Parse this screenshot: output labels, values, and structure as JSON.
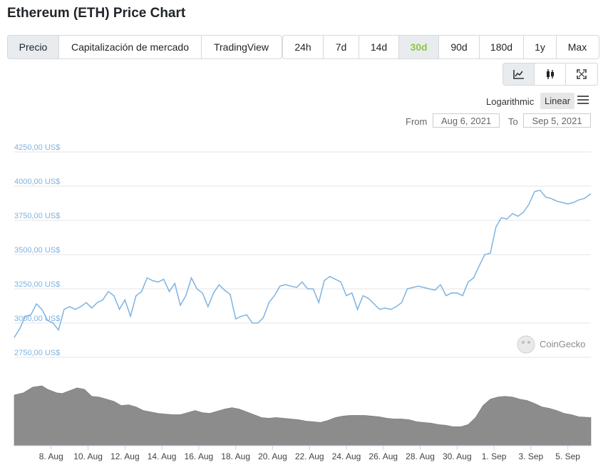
{
  "title": "Ethereum (ETH) Price Chart",
  "metric_tabs": [
    {
      "label": "Precio",
      "active": true
    },
    {
      "label": "Capitalización de mercado",
      "active": false
    },
    {
      "label": "TradingView",
      "active": false
    }
  ],
  "range_tabs": [
    {
      "label": "24h"
    },
    {
      "label": "7d"
    },
    {
      "label": "14d"
    },
    {
      "label": "30d",
      "active": true
    },
    {
      "label": "90d"
    },
    {
      "label": "180d"
    },
    {
      "label": "1y"
    },
    {
      "label": "Max"
    }
  ],
  "chart_type_buttons": [
    "line-chart-icon",
    "candlestick-icon",
    "fullscreen-icon"
  ],
  "scale": {
    "logarithmic": "Logarithmic",
    "linear": "Linear"
  },
  "date_range": {
    "from_label": "From",
    "from": "Aug 6, 2021",
    "to_label": "To",
    "to": "Sep 5, 2021"
  },
  "watermark": "CoinGecko",
  "colors": {
    "line": "#7eb3e0",
    "volume": "#8c8c8c",
    "active_range": "#8dc647",
    "axis_label": "#7eb3e0"
  },
  "chart_data": {
    "type": "line",
    "title": "",
    "xlabel": "",
    "ylabel": "",
    "ylim": [
      2750,
      4250
    ],
    "y_ticks": [
      "4250,00 US$",
      "4000,00 US$",
      "3750,00 US$",
      "3500,00 US$",
      "3250,00 US$",
      "3000,00 US$",
      "2750,00 US$"
    ],
    "y_tick_values": [
      4250,
      4000,
      3750,
      3500,
      3250,
      3000,
      2750
    ],
    "x_ticks": [
      "8. Aug",
      "10. Aug",
      "12. Aug",
      "14. Aug",
      "16. Aug",
      "18. Aug",
      "20. Aug",
      "22. Aug",
      "24. Aug",
      "26. Aug",
      "28. Aug",
      "30. Aug",
      "1. Sep",
      "3. Sep",
      "5. Sep"
    ],
    "x_tick_days": [
      2,
      4,
      6,
      8,
      10,
      12,
      14,
      16,
      18,
      20,
      22,
      24,
      26,
      28,
      30
    ],
    "x_domain_days": [
      0,
      31.25
    ],
    "series": [
      {
        "type": "line",
        "points": [
          [
            0,
            2895
          ],
          [
            0.3,
            2960
          ],
          [
            0.6,
            3050
          ],
          [
            0.9,
            3060
          ],
          [
            1.2,
            3140
          ],
          [
            1.5,
            3100
          ],
          [
            1.8,
            3020
          ],
          [
            2.1,
            3000
          ],
          [
            2.4,
            2950
          ],
          [
            2.7,
            3100
          ],
          [
            3.0,
            3120
          ],
          [
            3.3,
            3100
          ],
          [
            3.6,
            3120
          ],
          [
            3.9,
            3150
          ],
          [
            4.2,
            3110
          ],
          [
            4.5,
            3150
          ],
          [
            4.8,
            3170
          ],
          [
            5.1,
            3230
          ],
          [
            5.4,
            3200
          ],
          [
            5.7,
            3100
          ],
          [
            6.0,
            3170
          ],
          [
            6.3,
            3050
          ],
          [
            6.6,
            3200
          ],
          [
            6.9,
            3230
          ],
          [
            7.2,
            3330
          ],
          [
            7.5,
            3310
          ],
          [
            7.8,
            3300
          ],
          [
            8.1,
            3320
          ],
          [
            8.4,
            3230
          ],
          [
            8.7,
            3290
          ],
          [
            9.0,
            3130
          ],
          [
            9.3,
            3200
          ],
          [
            9.6,
            3330
          ],
          [
            9.9,
            3250
          ],
          [
            10.2,
            3220
          ],
          [
            10.5,
            3120
          ],
          [
            10.8,
            3220
          ],
          [
            11.1,
            3280
          ],
          [
            11.4,
            3240
          ],
          [
            11.7,
            3210
          ],
          [
            12.0,
            3030
          ],
          [
            12.3,
            3050
          ],
          [
            12.6,
            3060
          ],
          [
            12.9,
            3000
          ],
          [
            13.2,
            3000
          ],
          [
            13.5,
            3040
          ],
          [
            13.8,
            3150
          ],
          [
            14.1,
            3200
          ],
          [
            14.4,
            3270
          ],
          [
            14.7,
            3280
          ],
          [
            15.0,
            3270
          ],
          [
            15.3,
            3260
          ],
          [
            15.6,
            3300
          ],
          [
            15.9,
            3250
          ],
          [
            16.2,
            3250
          ],
          [
            16.5,
            3150
          ],
          [
            16.8,
            3310
          ],
          [
            17.1,
            3340
          ],
          [
            17.4,
            3320
          ],
          [
            17.7,
            3300
          ],
          [
            18.0,
            3200
          ],
          [
            18.3,
            3220
          ],
          [
            18.6,
            3100
          ],
          [
            18.9,
            3200
          ],
          [
            19.2,
            3180
          ],
          [
            19.5,
            3140
          ],
          [
            19.8,
            3100
          ],
          [
            20.1,
            3110
          ],
          [
            20.4,
            3100
          ],
          [
            20.7,
            3120
          ],
          [
            21.0,
            3150
          ],
          [
            21.3,
            3250
          ],
          [
            21.6,
            3260
          ],
          [
            21.9,
            3270
          ],
          [
            22.2,
            3260
          ],
          [
            22.5,
            3250
          ],
          [
            22.8,
            3240
          ],
          [
            23.1,
            3280
          ],
          [
            23.4,
            3200
          ],
          [
            23.7,
            3220
          ],
          [
            24.0,
            3220
          ],
          [
            24.3,
            3200
          ],
          [
            24.6,
            3300
          ],
          [
            24.9,
            3330
          ],
          [
            25.2,
            3420
          ],
          [
            25.5,
            3500
          ],
          [
            25.8,
            3510
          ],
          [
            26.1,
            3700
          ],
          [
            26.4,
            3770
          ],
          [
            26.7,
            3760
          ],
          [
            27.0,
            3800
          ],
          [
            27.3,
            3780
          ],
          [
            27.6,
            3810
          ],
          [
            27.9,
            3870
          ],
          [
            28.2,
            3960
          ],
          [
            28.5,
            3970
          ],
          [
            28.8,
            3920
          ],
          [
            29.1,
            3910
          ],
          [
            29.4,
            3890
          ],
          [
            29.7,
            3880
          ],
          [
            30.0,
            3870
          ],
          [
            30.3,
            3880
          ],
          [
            30.6,
            3900
          ],
          [
            30.9,
            3910
          ],
          [
            31.25,
            3945
          ]
        ]
      },
      {
        "type": "area",
        "name": "volume",
        "points": [
          [
            0,
            0.72
          ],
          [
            0.5,
            0.75
          ],
          [
            1.0,
            0.83
          ],
          [
            1.5,
            0.85
          ],
          [
            1.8,
            0.8
          ],
          [
            2.0,
            0.78
          ],
          [
            2.3,
            0.75
          ],
          [
            2.6,
            0.74
          ],
          [
            3.0,
            0.78
          ],
          [
            3.4,
            0.82
          ],
          [
            3.8,
            0.8
          ],
          [
            4.2,
            0.7
          ],
          [
            4.6,
            0.69
          ],
          [
            5.0,
            0.66
          ],
          [
            5.4,
            0.63
          ],
          [
            5.8,
            0.57
          ],
          [
            6.2,
            0.58
          ],
          [
            6.6,
            0.55
          ],
          [
            7.0,
            0.5
          ],
          [
            7.4,
            0.48
          ],
          [
            7.8,
            0.46
          ],
          [
            8.2,
            0.45
          ],
          [
            8.6,
            0.44
          ],
          [
            9.0,
            0.44
          ],
          [
            9.4,
            0.47
          ],
          [
            9.8,
            0.5
          ],
          [
            10.2,
            0.47
          ],
          [
            10.6,
            0.46
          ],
          [
            11.0,
            0.49
          ],
          [
            11.4,
            0.52
          ],
          [
            11.8,
            0.54
          ],
          [
            12.2,
            0.52
          ],
          [
            12.6,
            0.48
          ],
          [
            13.0,
            0.44
          ],
          [
            13.4,
            0.4
          ],
          [
            13.8,
            0.39
          ],
          [
            14.2,
            0.4
          ],
          [
            14.6,
            0.39
          ],
          [
            15.0,
            0.38
          ],
          [
            15.4,
            0.37
          ],
          [
            15.8,
            0.35
          ],
          [
            16.2,
            0.34
          ],
          [
            16.6,
            0.33
          ],
          [
            17.0,
            0.36
          ],
          [
            17.4,
            0.4
          ],
          [
            17.8,
            0.42
          ],
          [
            18.2,
            0.43
          ],
          [
            18.6,
            0.43
          ],
          [
            19.0,
            0.43
          ],
          [
            19.4,
            0.42
          ],
          [
            19.8,
            0.41
          ],
          [
            20.2,
            0.39
          ],
          [
            20.6,
            0.38
          ],
          [
            21.0,
            0.38
          ],
          [
            21.4,
            0.37
          ],
          [
            21.8,
            0.34
          ],
          [
            22.2,
            0.33
          ],
          [
            22.6,
            0.32
          ],
          [
            23.0,
            0.3
          ],
          [
            23.4,
            0.29
          ],
          [
            23.8,
            0.27
          ],
          [
            24.2,
            0.27
          ],
          [
            24.6,
            0.3
          ],
          [
            25.0,
            0.4
          ],
          [
            25.4,
            0.57
          ],
          [
            25.8,
            0.66
          ],
          [
            26.2,
            0.69
          ],
          [
            26.6,
            0.7
          ],
          [
            27.0,
            0.69
          ],
          [
            27.4,
            0.66
          ],
          [
            27.8,
            0.64
          ],
          [
            28.2,
            0.6
          ],
          [
            28.6,
            0.55
          ],
          [
            29.0,
            0.53
          ],
          [
            29.4,
            0.5
          ],
          [
            29.8,
            0.46
          ],
          [
            30.2,
            0.44
          ],
          [
            30.6,
            0.41
          ],
          [
            31.25,
            0.4
          ]
        ]
      }
    ],
    "grid": true,
    "legend": "none"
  }
}
